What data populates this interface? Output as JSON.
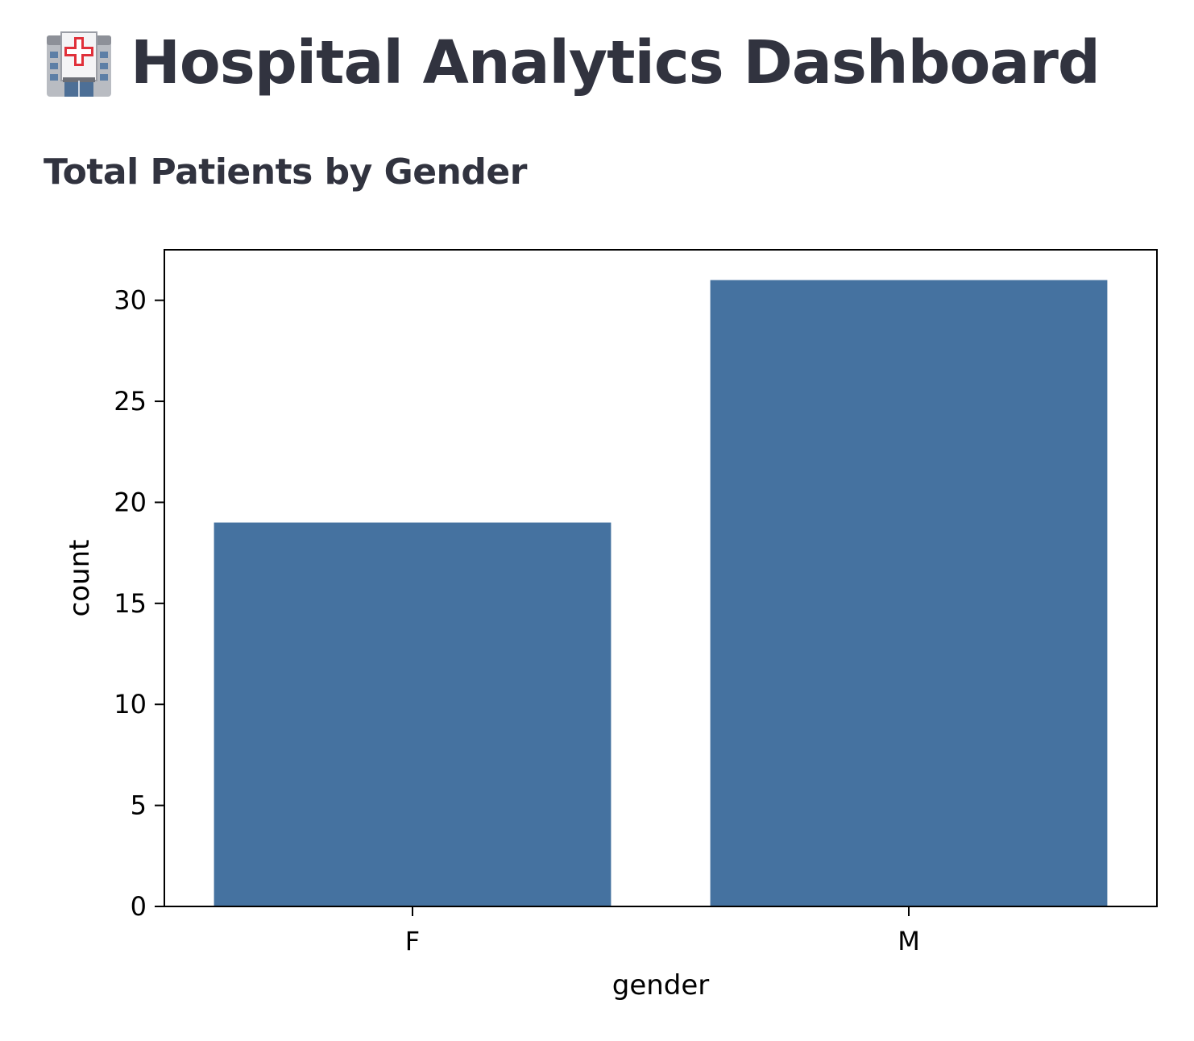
{
  "header": {
    "title": "Hospital Analytics Dashboard",
    "icon": "hospital-icon"
  },
  "section": {
    "title": "Total Patients by Gender"
  },
  "chart_data": {
    "type": "bar",
    "categories": [
      "F",
      "M"
    ],
    "values": [
      19,
      31
    ],
    "title": "",
    "xlabel": "gender",
    "ylabel": "count",
    "ylim": [
      0,
      32.5
    ],
    "yticks": [
      "0",
      "5",
      "10",
      "15",
      "20",
      "25",
      "30"
    ],
    "bar_color": "#4572a0",
    "grid": false,
    "legend": "none"
  }
}
